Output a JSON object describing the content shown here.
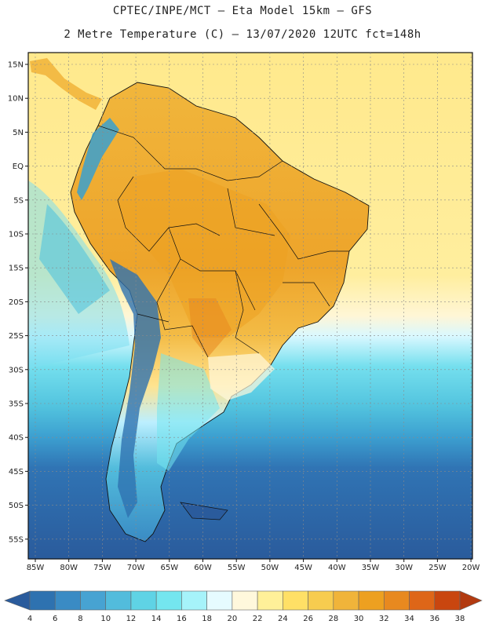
{
  "header": {
    "title_line1": "CPTEC/INPE/MCT –  Eta Model 15km – GFS",
    "title_line2": "2 Metre Temperature (C) – 13/07/2020 12UTC fct=148h"
  },
  "map": {
    "variable": "2 Metre Temperature (C)",
    "lat_labels": [
      "15N",
      "10N",
      "5N",
      "EQ",
      "5S",
      "10S",
      "15S",
      "20S",
      "25S",
      "30S",
      "35S",
      "40S",
      "45S",
      "50S",
      "55S"
    ],
    "lon_labels": [
      "85W",
      "80W",
      "75W",
      "70W",
      "65W",
      "60W",
      "55W",
      "50W",
      "45W",
      "40W",
      "35W",
      "30W",
      "25W",
      "20W"
    ]
  },
  "colorbar": {
    "labels": [
      "4",
      "6",
      "8",
      "10",
      "12",
      "14",
      "16",
      "18",
      "20",
      "22",
      "24",
      "26",
      "28",
      "30",
      "32",
      "34",
      "36",
      "38"
    ],
    "colors": [
      "#2a5b9c",
      "#2e72b0",
      "#3a8bc4",
      "#47a3d2",
      "#52bcdc",
      "#5fd3e5",
      "#74e6ef",
      "#a6f3fa",
      "#e6fbff",
      "#fff8dc",
      "#fff099",
      "#ffe066",
      "#f7cc4f",
      "#f0b43a",
      "#eda020",
      "#e8891f",
      "#de6618",
      "#c9460f",
      "#b23a10"
    ]
  },
  "style": {
    "ocean_tropical": "#ffe68a",
    "ocean_mid": "#52c3de",
    "ocean_south": "#2f67a8",
    "land_hot": "#eda42a",
    "land_warm": "#f5c451",
    "andes_cold": "#3aa0cf"
  }
}
